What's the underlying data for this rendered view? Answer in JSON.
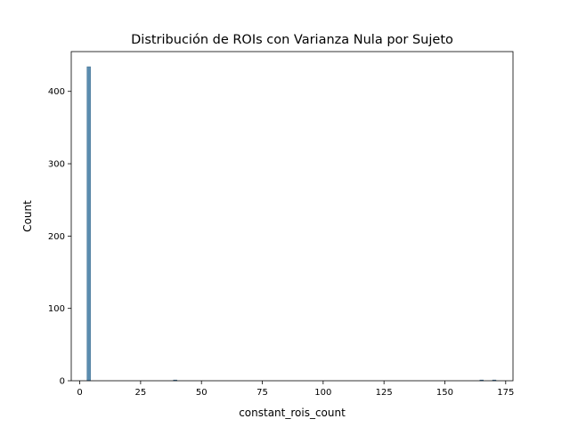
{
  "chart_data": {
    "type": "bar",
    "title": "Distribución de ROIs con Varianza Nula por Sujeto",
    "xlabel": "constant_rois_count",
    "ylabel": "Count",
    "xlim": [
      -3.5,
      178
    ],
    "ylim": [
      0,
      455
    ],
    "xticks": [
      0,
      25,
      50,
      75,
      100,
      125,
      150,
      175
    ],
    "yticks": [
      0,
      100,
      200,
      300,
      400
    ],
    "xtick_labels": [
      "0",
      "25",
      "50",
      "75",
      "100",
      "125",
      "150",
      "175"
    ],
    "ytick_labels": [
      "0",
      "100",
      "200",
      "300",
      "400"
    ],
    "bar_color": "#5b8db0",
    "bar_edge_color": "#3f6f93",
    "grid": false,
    "bins": [
      {
        "x_start": 3.0,
        "x_end": 4.4,
        "count": 434
      },
      {
        "x_start": 38.5,
        "x_end": 39.9,
        "count": 1
      },
      {
        "x_start": 164.4,
        "x_end": 165.8,
        "count": 1
      },
      {
        "x_start": 169.6,
        "x_end": 171.0,
        "count": 1
      }
    ]
  }
}
